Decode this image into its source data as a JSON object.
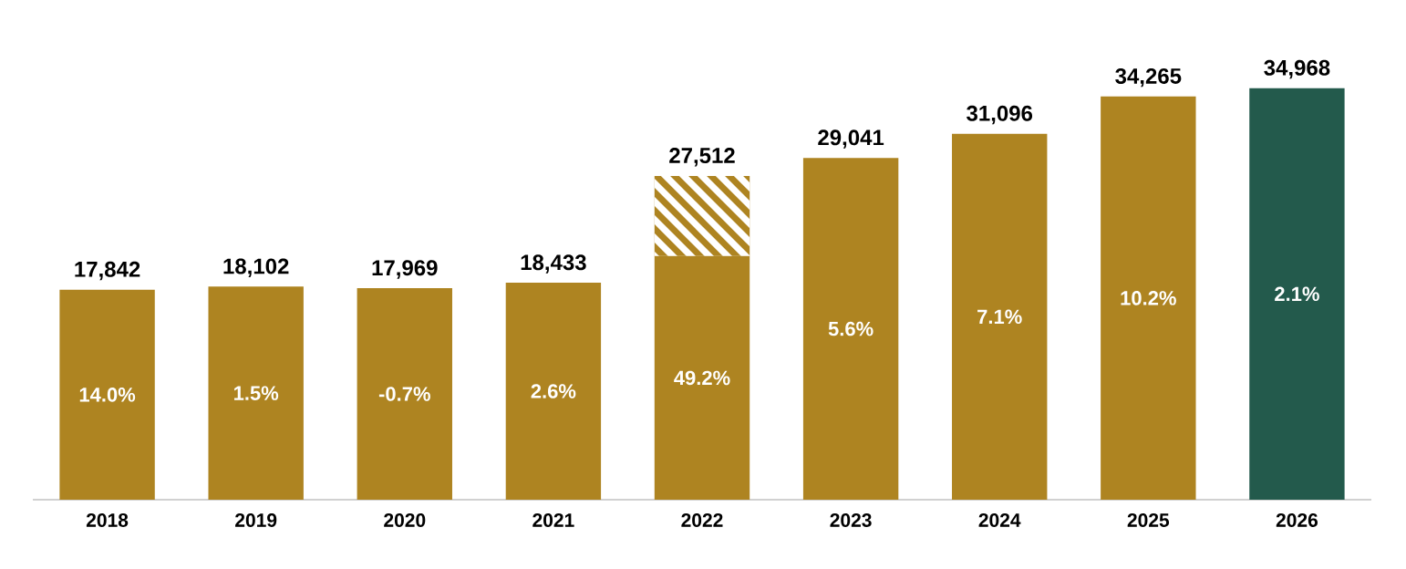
{
  "chart_data": {
    "type": "bar",
    "stacked": true,
    "categories": [
      "2018",
      "2019",
      "2020",
      "2021",
      "2022",
      "2023",
      "2024",
      "2025",
      "2026"
    ],
    "series": [
      {
        "colors": [
          "#ae8421",
          "#ae8421",
          "#ae8421",
          "#ae8421",
          "#ae8421",
          "#ae8421",
          "#ae8421",
          "#ae8421",
          "#235a4c"
        ],
        "values": [
          17842,
          18102,
          17969,
          18433,
          20700,
          29041,
          31096,
          34265,
          34968
        ],
        "value_labels": [
          "17,842",
          "18,102",
          "17,969",
          "18,433",
          null,
          "29,041",
          "31,096",
          "34,265",
          "34,968"
        ]
      },
      {
        "color": "#ae8421",
        "values": [
          null,
          null,
          null,
          null,
          6812,
          null,
          null,
          null,
          null
        ]
      }
    ],
    "totals": [
      null,
      null,
      null,
      null,
      "27,512",
      null,
      null,
      null,
      null
    ],
    "annotations": [
      "14.0%",
      "1.5%",
      "-0.7%",
      "2.6%",
      "49.2%",
      "5.6%",
      "7.1%",
      "10.2%",
      "2.1%"
    ],
    "tick_labels": "x"
  }
}
